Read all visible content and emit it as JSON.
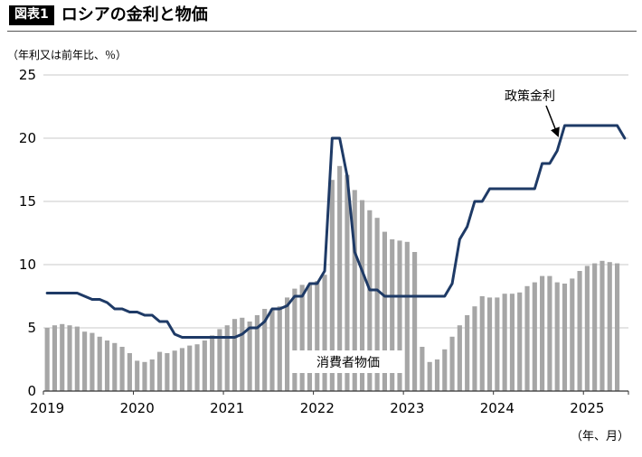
{
  "header": {
    "badge": "図表1",
    "title": "ロシアの金利と物価"
  },
  "chart_data": {
    "type": "bar+line",
    "title": "ロシアの金利と物価",
    "ylabel": "（年利又は前年比、％）",
    "xlabel": "（年、月）",
    "ylim": [
      0,
      25
    ],
    "yticks": [
      0,
      5,
      10,
      15,
      20,
      25
    ],
    "x_start": "2019-01",
    "x_frequency": "monthly",
    "x_years": [
      "2019",
      "2020",
      "2021",
      "2022",
      "2023",
      "2024",
      "2025"
    ],
    "grid": "horizontal",
    "legend_position": "none",
    "series": [
      {
        "name": "消費者物価",
        "type": "bar",
        "color": "#a6a6a6",
        "values": [
          5.0,
          5.2,
          5.3,
          5.2,
          5.1,
          4.7,
          4.6,
          4.3,
          4.0,
          3.8,
          3.5,
          3.0,
          2.4,
          2.3,
          2.5,
          3.1,
          3.0,
          3.2,
          3.4,
          3.6,
          3.7,
          4.0,
          4.4,
          4.9,
          5.2,
          5.7,
          5.8,
          5.5,
          6.0,
          6.5,
          6.5,
          6.7,
          7.4,
          8.1,
          8.4,
          8.4,
          8.7,
          9.2,
          16.7,
          17.8,
          17.1,
          15.9,
          15.1,
          14.3,
          13.7,
          12.6,
          12.0,
          11.9,
          11.8,
          11.0,
          3.5,
          2.3,
          2.5,
          3.3,
          4.3,
          5.2,
          6.0,
          6.7,
          7.5,
          7.4,
          7.4,
          7.7,
          7.7,
          7.8,
          8.3,
          8.6,
          9.1,
          9.1,
          8.6,
          8.5,
          8.9,
          9.5,
          9.9,
          10.1,
          10.3,
          10.2,
          10.1
        ]
      },
      {
        "name": "政策金利",
        "type": "line",
        "color": "#1e3a66",
        "values": [
          7.75,
          7.75,
          7.75,
          7.75,
          7.75,
          7.5,
          7.25,
          7.25,
          7.0,
          6.5,
          6.5,
          6.25,
          6.25,
          6.0,
          6.0,
          5.5,
          5.5,
          4.5,
          4.25,
          4.25,
          4.25,
          4.25,
          4.25,
          4.25,
          4.25,
          4.25,
          4.5,
          5.0,
          5.0,
          5.5,
          6.5,
          6.5,
          6.75,
          7.5,
          7.5,
          8.5,
          8.5,
          9.5,
          20.0,
          20.0,
          17.0,
          11.0,
          9.5,
          8.0,
          8.0,
          7.5,
          7.5,
          7.5,
          7.5,
          7.5,
          7.5,
          7.5,
          7.5,
          7.5,
          8.5,
          12.0,
          13.0,
          15.0,
          15.0,
          16.0,
          16.0,
          16.0,
          16.0,
          16.0,
          16.0,
          16.0,
          18.0,
          18.0,
          19.0,
          21.0,
          21.0,
          21.0,
          21.0,
          21.0,
          21.0,
          21.0,
          21.0,
          20.0
        ]
      }
    ],
    "annotations": [
      {
        "text": "政策金利",
        "series": "line",
        "style": "arrow-label"
      },
      {
        "text": "消費者物価",
        "series": "bar",
        "style": "boxed-label"
      }
    ]
  }
}
